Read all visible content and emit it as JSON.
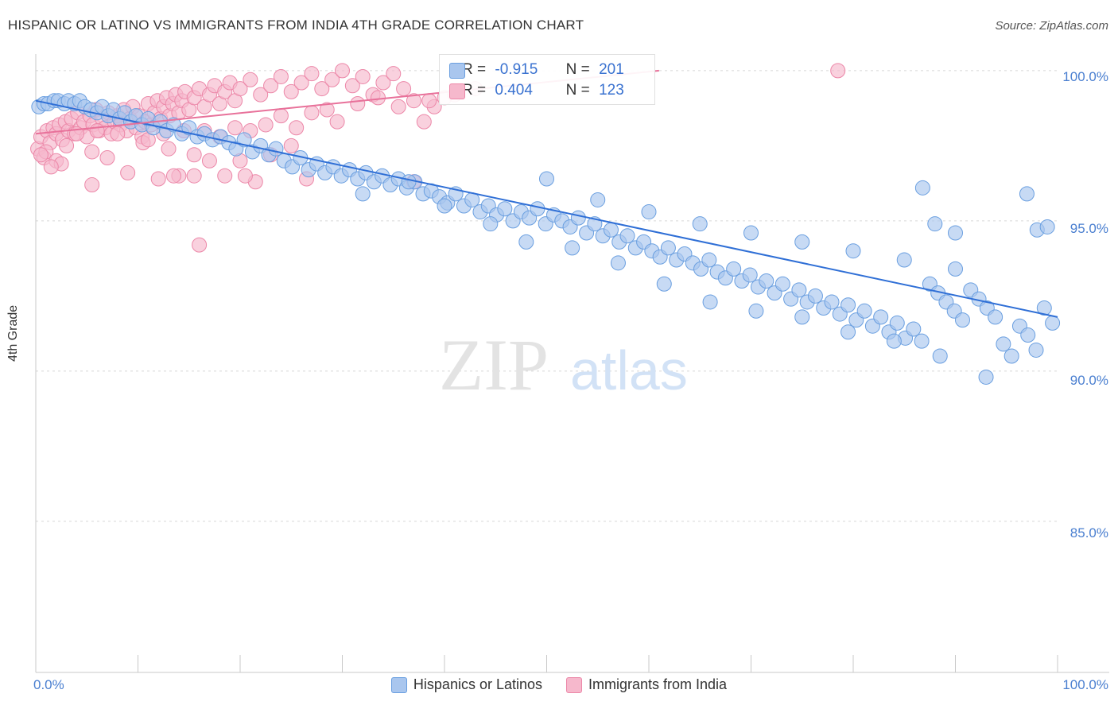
{
  "header": {
    "title": "HISPANIC OR LATINO VS IMMIGRANTS FROM INDIA 4TH GRADE CORRELATION CHART",
    "source": "Source: ZipAtlas.com"
  },
  "watermark": {
    "zip": "ZIP",
    "atlas": "atlas"
  },
  "colors": {
    "blue_fill": "#a9c6ee",
    "blue_stroke": "#6a9fe0",
    "blue_line": "#2f6fd6",
    "pink_fill": "#f6b8cc",
    "pink_stroke": "#ec87a8",
    "pink_line": "#e8719a",
    "tick_label": "#4a7fd0",
    "grid": "#d6d6d6"
  },
  "stats": {
    "rows": [
      {
        "r_label": "R =",
        "r": "-0.915",
        "n_label": "N =",
        "n": "201",
        "series": "blue"
      },
      {
        "r_label": "R =",
        "r": "0.404",
        "n_label": "N =",
        "n": "123",
        "series": "pink"
      }
    ]
  },
  "legend": {
    "items": [
      {
        "label": "Hispanics or Latinos",
        "series": "blue"
      },
      {
        "label": "Immigrants from India",
        "series": "pink"
      }
    ]
  },
  "chart_data": {
    "type": "scatter",
    "title": "HISPANIC OR LATINO VS IMMIGRANTS FROM INDIA 4TH GRADE CORRELATION CHART",
    "xlabel": "",
    "ylabel": "4th Grade",
    "xlim": [
      0,
      100
    ],
    "ylim": [
      80.5,
      100.5
    ],
    "x_tick_labels": [
      "0.0%",
      "100.0%"
    ],
    "y_ticks": [
      85,
      90,
      95,
      100
    ],
    "y_tick_labels": [
      "85.0%",
      "90.0%",
      "95.0%",
      "100.0%"
    ],
    "grid": true,
    "legend_position": "bottom",
    "series": [
      {
        "name": "Hispanics or Latinos",
        "color": "#a9c6ee",
        "trend": {
          "x": [
            0,
            100
          ],
          "y": [
            99.0,
            91.8
          ]
        },
        "points": [
          [
            0.3,
            98.8
          ],
          [
            0.8,
            98.9
          ],
          [
            1.2,
            98.9
          ],
          [
            1.8,
            99.0
          ],
          [
            2.2,
            99.0
          ],
          [
            2.8,
            98.9
          ],
          [
            3.2,
            99.0
          ],
          [
            3.8,
            98.9
          ],
          [
            4.3,
            99.0
          ],
          [
            4.8,
            98.8
          ],
          [
            5.4,
            98.7
          ],
          [
            6.0,
            98.6
          ],
          [
            6.5,
            98.8
          ],
          [
            7.1,
            98.5
          ],
          [
            7.6,
            98.7
          ],
          [
            8.2,
            98.4
          ],
          [
            8.7,
            98.6
          ],
          [
            9.3,
            98.3
          ],
          [
            9.8,
            98.5
          ],
          [
            10.4,
            98.2
          ],
          [
            11.0,
            98.4
          ],
          [
            11.5,
            98.1
          ],
          [
            12.2,
            98.3
          ],
          [
            12.8,
            98.0
          ],
          [
            13.5,
            98.2
          ],
          [
            14.3,
            97.9
          ],
          [
            15.0,
            98.1
          ],
          [
            15.8,
            97.8
          ],
          [
            16.5,
            97.9
          ],
          [
            17.3,
            97.7
          ],
          [
            18.1,
            97.8
          ],
          [
            18.9,
            97.6
          ],
          [
            19.6,
            97.4
          ],
          [
            20.4,
            97.7
          ],
          [
            21.2,
            97.3
          ],
          [
            22.0,
            97.5
          ],
          [
            22.8,
            97.2
          ],
          [
            23.5,
            97.4
          ],
          [
            24.3,
            97.0
          ],
          [
            25.1,
            96.8
          ],
          [
            25.9,
            97.1
          ],
          [
            26.7,
            96.7
          ],
          [
            27.5,
            96.9
          ],
          [
            28.3,
            96.6
          ],
          [
            29.1,
            96.8
          ],
          [
            29.9,
            96.5
          ],
          [
            30.7,
            96.7
          ],
          [
            31.5,
            96.4
          ],
          [
            32.3,
            96.6
          ],
          [
            33.1,
            96.3
          ],
          [
            33.9,
            96.5
          ],
          [
            34.7,
            96.2
          ],
          [
            35.5,
            96.4
          ],
          [
            36.3,
            96.1
          ],
          [
            37.1,
            96.3
          ],
          [
            37.9,
            95.9
          ],
          [
            38.7,
            96.0
          ],
          [
            39.5,
            95.8
          ],
          [
            40.3,
            95.6
          ],
          [
            41.1,
            95.9
          ],
          [
            41.9,
            95.5
          ],
          [
            42.7,
            95.7
          ],
          [
            43.5,
            95.3
          ],
          [
            44.3,
            95.5
          ],
          [
            45.1,
            95.2
          ],
          [
            45.9,
            95.4
          ],
          [
            46.7,
            95.0
          ],
          [
            47.5,
            95.3
          ],
          [
            48.3,
            95.1
          ],
          [
            49.1,
            95.4
          ],
          [
            49.9,
            94.9
          ],
          [
            50.7,
            95.2
          ],
          [
            51.5,
            95.0
          ],
          [
            52.3,
            94.8
          ],
          [
            53.1,
            95.1
          ],
          [
            53.9,
            94.6
          ],
          [
            54.7,
            94.9
          ],
          [
            55.5,
            94.5
          ],
          [
            56.3,
            94.7
          ],
          [
            57.1,
            94.3
          ],
          [
            57.9,
            94.5
          ],
          [
            58.7,
            94.1
          ],
          [
            59.5,
            94.3
          ],
          [
            60.3,
            94.0
          ],
          [
            61.1,
            93.8
          ],
          [
            61.9,
            94.1
          ],
          [
            62.7,
            93.7
          ],
          [
            63.5,
            93.9
          ],
          [
            64.3,
            93.6
          ],
          [
            65.1,
            93.4
          ],
          [
            65.9,
            93.7
          ],
          [
            66.7,
            93.3
          ],
          [
            67.5,
            93.1
          ],
          [
            68.3,
            93.4
          ],
          [
            69.1,
            93.0
          ],
          [
            69.9,
            93.2
          ],
          [
            70.7,
            92.8
          ],
          [
            71.5,
            93.0
          ],
          [
            72.3,
            92.6
          ],
          [
            73.1,
            92.9
          ],
          [
            73.9,
            92.4
          ],
          [
            74.7,
            92.7
          ],
          [
            75.5,
            92.3
          ],
          [
            76.3,
            92.5
          ],
          [
            77.1,
            92.1
          ],
          [
            77.9,
            92.3
          ],
          [
            78.7,
            91.9
          ],
          [
            79.5,
            92.2
          ],
          [
            80.3,
            91.7
          ],
          [
            81.1,
            92.0
          ],
          [
            81.9,
            91.5
          ],
          [
            82.7,
            91.8
          ],
          [
            83.5,
            91.3
          ],
          [
            84.3,
            91.6
          ],
          [
            85.1,
            91.1
          ],
          [
            85.9,
            91.4
          ],
          [
            86.7,
            91.0
          ],
          [
            87.5,
            92.9
          ],
          [
            88.3,
            92.6
          ],
          [
            89.1,
            92.3
          ],
          [
            89.9,
            92.0
          ],
          [
            90.7,
            91.7
          ],
          [
            91.5,
            92.7
          ],
          [
            92.3,
            92.4
          ],
          [
            93.1,
            92.1
          ],
          [
            93.9,
            91.8
          ],
          [
            94.7,
            90.9
          ],
          [
            95.5,
            90.5
          ],
          [
            96.3,
            91.5
          ],
          [
            97.1,
            91.2
          ],
          [
            97.9,
            90.7
          ],
          [
            98.7,
            92.1
          ],
          [
            99.5,
            91.6
          ],
          [
            32.0,
            95.9
          ],
          [
            36.5,
            96.3
          ],
          [
            40.0,
            95.5
          ],
          [
            44.5,
            94.9
          ],
          [
            48.0,
            94.3
          ],
          [
            52.5,
            94.1
          ],
          [
            57.0,
            93.6
          ],
          [
            61.5,
            92.9
          ],
          [
            66.0,
            92.3
          ],
          [
            70.5,
            92.0
          ],
          [
            75.0,
            91.8
          ],
          [
            79.5,
            91.3
          ],
          [
            84.0,
            91.0
          ],
          [
            88.5,
            90.5
          ],
          [
            93.0,
            89.8
          ],
          [
            50.0,
            96.4
          ],
          [
            55.0,
            95.7
          ],
          [
            60.0,
            95.3
          ],
          [
            65.0,
            94.9
          ],
          [
            70.0,
            94.6
          ],
          [
            75.0,
            94.3
          ],
          [
            80.0,
            94.0
          ],
          [
            85.0,
            93.7
          ],
          [
            90.0,
            93.4
          ],
          [
            97.0,
            95.9
          ],
          [
            98.0,
            94.7
          ],
          [
            99.0,
            94.8
          ],
          [
            86.8,
            96.1
          ],
          [
            88.0,
            94.9
          ],
          [
            90.0,
            94.6
          ]
        ]
      },
      {
        "name": "Immigrants from India",
        "color": "#f6b8cc",
        "trend": {
          "x": [
            0,
            61
          ],
          "y": [
            97.9,
            100.0
          ]
        },
        "points": [
          [
            0.2,
            97.4
          ],
          [
            0.5,
            97.8
          ],
          [
            0.8,
            97.1
          ],
          [
            1.1,
            98.0
          ],
          [
            1.4,
            97.6
          ],
          [
            1.7,
            98.1
          ],
          [
            2.0,
            97.9
          ],
          [
            2.3,
            98.2
          ],
          [
            2.6,
            97.7
          ],
          [
            2.9,
            98.3
          ],
          [
            3.2,
            98.0
          ],
          [
            3.5,
            98.4
          ],
          [
            3.8,
            97.9
          ],
          [
            4.1,
            98.6
          ],
          [
            4.4,
            98.1
          ],
          [
            4.7,
            98.3
          ],
          [
            5.0,
            97.8
          ],
          [
            5.3,
            98.5
          ],
          [
            5.6,
            98.2
          ],
          [
            5.9,
            98.7
          ],
          [
            6.2,
            98.0
          ],
          [
            6.5,
            98.4
          ],
          [
            6.8,
            98.1
          ],
          [
            7.1,
            98.6
          ],
          [
            7.4,
            97.9
          ],
          [
            7.7,
            98.3
          ],
          [
            8.0,
            98.5
          ],
          [
            8.3,
            98.2
          ],
          [
            8.6,
            98.7
          ],
          [
            8.9,
            98.0
          ],
          [
            9.2,
            98.4
          ],
          [
            9.5,
            98.8
          ],
          [
            9.8,
            98.1
          ],
          [
            10.1,
            98.5
          ],
          [
            10.4,
            97.8
          ],
          [
            10.7,
            98.3
          ],
          [
            11.0,
            98.9
          ],
          [
            11.3,
            98.2
          ],
          [
            11.6,
            98.6
          ],
          [
            11.9,
            99.0
          ],
          [
            12.2,
            98.4
          ],
          [
            12.5,
            98.8
          ],
          [
            12.8,
            99.1
          ],
          [
            13.1,
            98.5
          ],
          [
            13.4,
            98.9
          ],
          [
            13.7,
            99.2
          ],
          [
            14.0,
            98.6
          ],
          [
            14.3,
            99.0
          ],
          [
            14.6,
            99.3
          ],
          [
            15.0,
            98.7
          ],
          [
            15.5,
            99.1
          ],
          [
            16.0,
            99.4
          ],
          [
            16.5,
            98.8
          ],
          [
            17.0,
            99.2
          ],
          [
            17.5,
            99.5
          ],
          [
            18.0,
            98.9
          ],
          [
            18.5,
            99.3
          ],
          [
            19.0,
            99.6
          ],
          [
            19.5,
            99.0
          ],
          [
            20.0,
            99.4
          ],
          [
            21.0,
            99.7
          ],
          [
            22.0,
            99.2
          ],
          [
            23.0,
            99.5
          ],
          [
            24.0,
            99.8
          ],
          [
            25.0,
            99.3
          ],
          [
            26.0,
            99.6
          ],
          [
            27.0,
            99.9
          ],
          [
            28.0,
            99.4
          ],
          [
            29.0,
            99.7
          ],
          [
            30.0,
            100.0
          ],
          [
            31.0,
            99.5
          ],
          [
            32.0,
            99.8
          ],
          [
            33.0,
            99.2
          ],
          [
            34.0,
            99.6
          ],
          [
            35.0,
            99.9
          ],
          [
            36.0,
            99.4
          ],
          [
            37.0,
            99.0
          ],
          [
            38.0,
            98.3
          ],
          [
            39.0,
            98.8
          ],
          [
            40.0,
            99.1
          ],
          [
            3.0,
            97.5
          ],
          [
            5.5,
            97.3
          ],
          [
            7.0,
            97.1
          ],
          [
            9.0,
            96.6
          ],
          [
            10.5,
            97.6
          ],
          [
            12.0,
            96.4
          ],
          [
            13.0,
            97.4
          ],
          [
            14.0,
            96.5
          ],
          [
            15.5,
            97.2
          ],
          [
            17.0,
            97.0
          ],
          [
            18.5,
            96.5
          ],
          [
            20.0,
            97.0
          ],
          [
            21.5,
            96.3
          ],
          [
            23.0,
            97.2
          ],
          [
            25.0,
            97.5
          ],
          [
            5.5,
            96.2
          ],
          [
            13.5,
            96.5
          ],
          [
            15.5,
            96.5
          ],
          [
            20.5,
            96.5
          ],
          [
            26.5,
            96.4
          ],
          [
            37.0,
            96.3
          ],
          [
            16.0,
            94.2
          ],
          [
            78.5,
            100.0
          ],
          [
            1.0,
            97.3
          ],
          [
            2.0,
            97.0
          ],
          [
            2.5,
            96.9
          ],
          [
            0.5,
            97.2
          ],
          [
            1.5,
            96.8
          ],
          [
            4.0,
            97.9
          ],
          [
            6.0,
            98.0
          ],
          [
            8.0,
            97.9
          ],
          [
            11.0,
            97.7
          ],
          [
            12.5,
            97.9
          ],
          [
            14.5,
            98.0
          ],
          [
            16.5,
            98.0
          ],
          [
            18.0,
            97.8
          ],
          [
            19.5,
            98.1
          ],
          [
            21.0,
            98.0
          ],
          [
            22.5,
            98.2
          ],
          [
            24.0,
            98.5
          ],
          [
            25.5,
            98.1
          ],
          [
            27.0,
            98.6
          ],
          [
            28.5,
            98.7
          ],
          [
            29.5,
            98.3
          ],
          [
            31.5,
            98.9
          ],
          [
            33.5,
            99.1
          ],
          [
            35.5,
            98.8
          ],
          [
            38.5,
            99.0
          ],
          [
            41.0,
            99.2
          ],
          [
            43.0,
            99.4
          ]
        ]
      }
    ]
  }
}
